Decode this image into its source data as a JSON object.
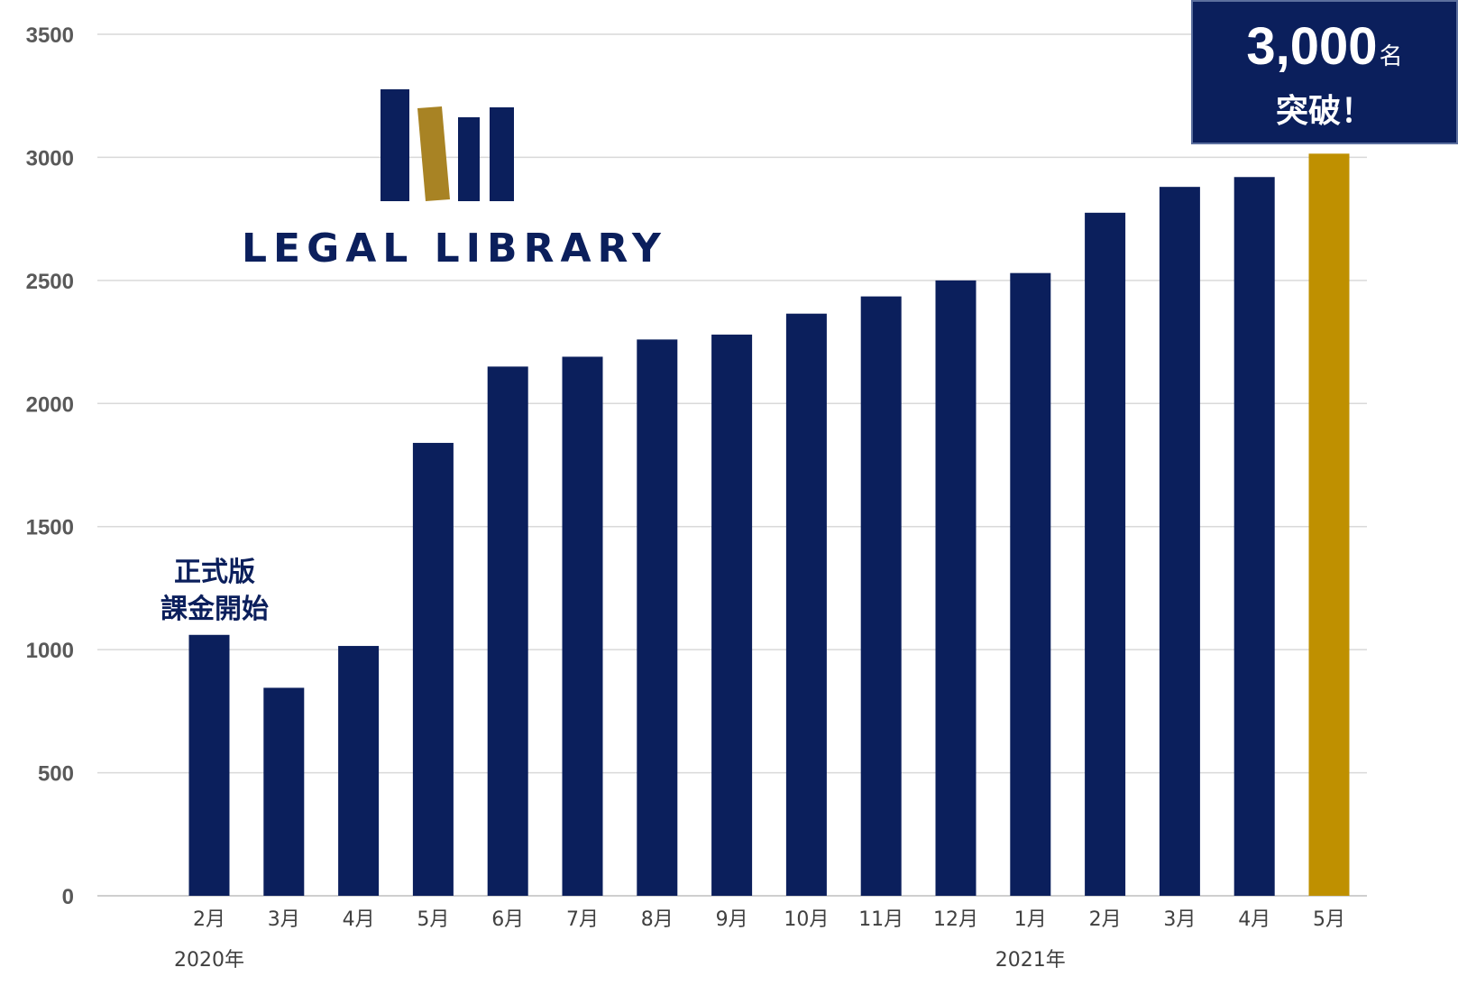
{
  "chart_data": {
    "type": "bar",
    "title": "",
    "xlabel": "",
    "ylabel": "",
    "ylim": [
      0,
      3500
    ],
    "yticks": [
      0,
      500,
      1000,
      1500,
      2000,
      2500,
      3000,
      3500
    ],
    "grid": true,
    "categories": [
      "2月",
      "3月",
      "4月",
      "5月",
      "6月",
      "7月",
      "8月",
      "9月",
      "10月",
      "11月",
      "12月",
      "1月",
      "2月",
      "3月",
      "4月",
      "5月"
    ],
    "values": [
      1060,
      845,
      1015,
      1840,
      2150,
      2190,
      2260,
      2280,
      2365,
      2435,
      2500,
      2530,
      2775,
      2880,
      2920,
      3015
    ],
    "year_labels": [
      {
        "text": "2020年",
        "category_index": 0
      },
      {
        "text": "2021年",
        "category_index": 11
      }
    ],
    "colors": {
      "bar": "#0b1f5c",
      "highlight": "#bf9000"
    },
    "highlight_index": 15,
    "annotations": {
      "launch_note": [
        "正式版",
        "課金開始"
      ],
      "callout": {
        "number": "3,000",
        "unit": "名",
        "text": "突破！"
      }
    }
  },
  "logo": {
    "text": "LEGAL LIBRARY",
    "colors": {
      "navy": "#0b1f5c",
      "gold": "#a88324"
    }
  }
}
